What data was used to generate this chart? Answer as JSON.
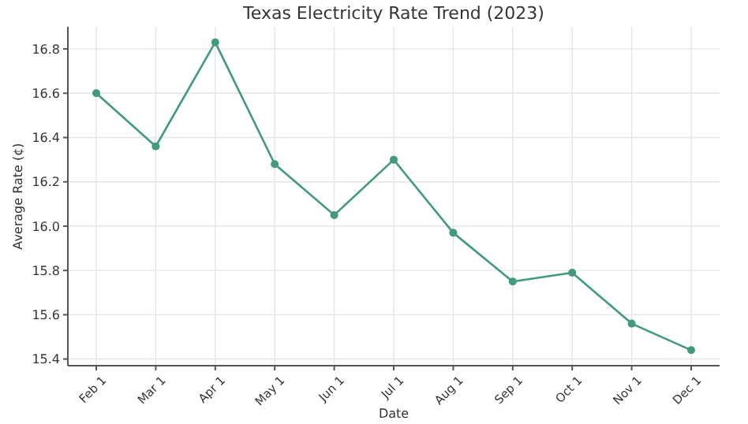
{
  "chart_data": {
    "type": "line",
    "title": "Texas Electricity Rate Trend (2023)",
    "xlabel": "Date",
    "ylabel": "Average Rate (¢)",
    "categories": [
      "Feb 1",
      "Mar 1",
      "Apr 1",
      "May 1",
      "Jun 1",
      "Jul 1",
      "Aug 1",
      "Sep 1",
      "Oct 1",
      "Nov 1",
      "Dec 1"
    ],
    "series": [
      {
        "color": "#3f9b7c",
        "values": [
          16.6,
          16.36,
          16.83,
          16.28,
          16.05,
          16.3,
          15.97,
          15.75,
          15.79,
          15.56,
          15.44
        ]
      }
    ],
    "ylim": [
      15.37,
      16.9
    ],
    "yticks": [
      15.4,
      15.6,
      15.8,
      {
        "value": 16,
        "label": "16.0"
      },
      16.2,
      16.4,
      16.6,
      16.8
    ],
    "grid": true,
    "marker": "circle",
    "line_style": "solid"
  }
}
